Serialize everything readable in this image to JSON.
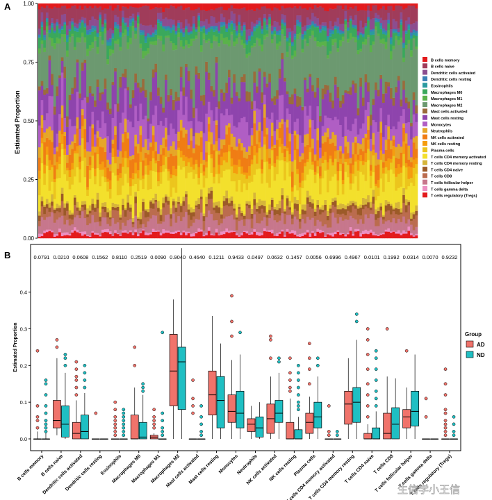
{
  "watermark": "生信学小王信",
  "colors": {
    "AD": "#f0736b",
    "ND": "#1fbfc3",
    "cell_types": [
      "#e31a1c",
      "#a03c5a",
      "#8c4d8f",
      "#3b7fb5",
      "#2a9aa0",
      "#3aa85c",
      "#5ab24a",
      "#6c9970",
      "#9b6b3c",
      "#8e44ad",
      "#b05ec4",
      "#e6a628",
      "#f07d14",
      "#f59d0f",
      "#ecc51d",
      "#f3e02c",
      "#d6b53a",
      "#9c5a28",
      "#bb6c4e",
      "#c7778c",
      "#ec8fc2"
    ]
  },
  "chart_data": [
    {
      "panel_label": "A",
      "type": "bar",
      "stacked": true,
      "n_samples": 150,
      "ylabel": "Estiamted Proportion",
      "ylim": [
        0,
        1
      ],
      "yticks": [
        0,
        0.25,
        0.5,
        0.75,
        1
      ],
      "ytick_labels": [
        "0.00",
        "0.25",
        "0.50",
        "0.75",
        "1.00"
      ],
      "legend_position": "right",
      "series_names": [
        "B cells memory",
        "B cells naive",
        "Dendritic cells activated",
        "Dendritic cells resting",
        "Eosinophils",
        "Macrophages M0",
        "Macrophages M1",
        "Macrophages M2",
        "Mast cells activated",
        "Mast cells resting",
        "Monocytes",
        "Neutrophils",
        "NK cells activated",
        "NK cells resting",
        "Plasma cells",
        "T cells CD4 memory activated",
        "T cells CD4 memory resting",
        "T cells CD4 naive",
        "T cells CD8",
        "T cells follicular helper",
        "T cells gamma delta",
        "T cells regulatory (Tregs)"
      ],
      "mean_proportions_bottom_to_top": {
        "T cells regulatory (Tregs)": 0.02,
        "T cells gamma delta": 0.01,
        "T cells follicular helper": 0.05,
        "T cells CD8": 0.04,
        "T cells CD4 naive": 0.02,
        "T cells CD4 memory resting": 0.02,
        "T cells CD4 memory activated": 0.1,
        "Plasma cells": 0.06,
        "NK cells resting": 0.03,
        "NK cells activated": 0.06,
        "Neutrophils": 0.04,
        "Monocytes": 0.09,
        "Mast cells resting": 0.12,
        "Mast cells activated": 0.03,
        "Macrophages M2": 0.19,
        "Macrophages M1": 0.02,
        "Macrophages M0": 0.04,
        "Eosinophils": 0.01,
        "Dendritic cells resting": 0.01,
        "Dendritic cells activated": 0.03,
        "B cells naive": 0.06,
        "B cells memory": 0.02
      }
    },
    {
      "panel_label": "B",
      "type": "box",
      "ylabel": "Estimated Proportion",
      "ylim": [
        0,
        0.53
      ],
      "yticks": [
        0,
        0.1,
        0.2,
        0.3,
        0.4
      ],
      "ytick_labels": [
        "0.0",
        "0.1",
        "0.2",
        "0.3",
        "0.4"
      ],
      "legend_title": "Group",
      "legend_position": "right",
      "groups": [
        "AD",
        "ND"
      ],
      "categories": [
        "B cells memory",
        "B cells naive",
        "Dendritic cells activated",
        "Dendritic cells resting",
        "Eosinophils",
        "Macrophages M0",
        "Macrophages M1",
        "Macrophages M2",
        "Mast cells activated",
        "Mast cells resting",
        "Monocytes",
        "Neutrophils",
        "NK cells activated",
        "NK cells resting",
        "Plasma cells",
        "T cells CD4 memory activated",
        "T cells CD4 memory resting",
        "T cells CD4 naive",
        "T cells CD8",
        "T cells follicular helper",
        "T cells gamma delta",
        "T cells regulatory (Tregs)"
      ],
      "pvalues": [
        "0.0791",
        "0.0210",
        "0.0608",
        "0.1562",
        "0.8110",
        "0.2519",
        "0.0090",
        "0.9040",
        "0.4640",
        "0.1211",
        "0.9433",
        "0.0497",
        "0.0632",
        "0.1457",
        "0.0056",
        "0.6996",
        "0.4967",
        "0.0101",
        "0.1992",
        "0.0314",
        "0.0070",
        "0.9232"
      ],
      "AD": [
        [
          0,
          0,
          0,
          0,
          0.02,
          [
            0.03,
            0.05,
            0.06,
            0.09,
            0.24
          ]
        ],
        [
          0.01,
          0.03,
          0.05,
          0.105,
          0.22,
          [
            0.25,
            0.27
          ]
        ],
        [
          0,
          0,
          0.015,
          0.045,
          0.105,
          [
            0.12,
            0.14,
            0.16,
            0.17,
            0.19,
            0.21
          ]
        ],
        [
          0,
          0,
          0,
          0,
          0,
          [
            0.07
          ]
        ],
        [
          0,
          0,
          0,
          0,
          0,
          [
            0.01,
            0.02,
            0.03,
            0.04,
            0.05,
            0.06,
            0.08,
            0.1
          ]
        ],
        [
          0,
          0,
          0,
          0.065,
          0.14,
          [
            0.2,
            0.25
          ]
        ],
        [
          0,
          0,
          0.005,
          0.01,
          0.015,
          [
            0.03,
            0.04,
            0.05,
            0.06,
            0.08
          ]
        ],
        [
          0,
          0.09,
          0.185,
          0.285,
          0.38,
          []
        ],
        [
          0,
          0,
          0,
          0,
          0,
          [
            0.07,
            0.09,
            0.11,
            0.16
          ]
        ],
        [
          0,
          0.065,
          0.12,
          0.185,
          0.335,
          []
        ],
        [
          0,
          0.045,
          0.075,
          0.12,
          0.215,
          [
            0.28,
            0.32,
            0.39
          ]
        ],
        [
          0,
          0.02,
          0.04,
          0.055,
          0.09,
          []
        ],
        [
          0,
          0.015,
          0.055,
          0.095,
          0.17,
          [
            0.22,
            0.27,
            0.28
          ]
        ],
        [
          0,
          0,
          0,
          0.045,
          0.11,
          [
            0.13,
            0.14,
            0.16,
            0.18,
            0.22
          ]
        ],
        [
          0,
          0.015,
          0.045,
          0.07,
          0.115,
          [
            0.15,
            0.19,
            0.22,
            0.26
          ]
        ],
        [
          0,
          0,
          0,
          0,
          0,
          [
            0.01,
            0.02,
            0.09
          ]
        ],
        [
          0,
          0.04,
          0.095,
          0.13,
          0.22,
          []
        ],
        [
          0,
          0,
          0,
          0.015,
          0.04,
          [
            0.06,
            0.09,
            0.12,
            0.15,
            0.19,
            0.23,
            0.27,
            0.3
          ]
        ],
        [
          0,
          0,
          0.015,
          0.07,
          0.17,
          [
            0.3
          ]
        ],
        [
          0,
          0.03,
          0.06,
          0.08,
          0.14,
          [
            0.24
          ]
        ],
        [
          0,
          0,
          0,
          0,
          0,
          [
            0.06,
            0.11
          ]
        ],
        [
          0,
          0,
          0,
          0,
          0,
          [
            0.01,
            0.02,
            0.03,
            0.04,
            0.05,
            0.07,
            0.08,
            0.12,
            0.15,
            0.19
          ]
        ]
      ],
      "ND": [
        [
          0,
          0,
          0,
          0,
          0.02,
          [
            0.02,
            0.03,
            0.04,
            0.05,
            0.07,
            0.09,
            0.12,
            0.15,
            0.16
          ]
        ],
        [
          0,
          0.005,
          0.04,
          0.09,
          0.18,
          [
            0.2,
            0.22,
            0.23
          ]
        ],
        [
          0,
          0,
          0.02,
          0.065,
          0.125,
          [
            0.14,
            0.16,
            0.18,
            0.2
          ]
        ],
        [
          0,
          0,
          0,
          0,
          0,
          []
        ],
        [
          0,
          0,
          0,
          0,
          0,
          [
            0.01,
            0.02,
            0.03,
            0.04,
            0.05,
            0.06,
            0.07,
            0.08
          ]
        ],
        [
          0,
          0,
          0.005,
          0.045,
          0.12,
          [
            0.13,
            0.14,
            0.15
          ]
        ],
        [
          0,
          0,
          0,
          0,
          0,
          [
            0.01,
            0.02,
            0.03,
            0.05,
            0.07,
            0.29
          ]
        ],
        [
          0,
          0.08,
          0.21,
          0.25,
          0.52,
          []
        ],
        [
          0,
          0,
          0,
          0,
          0,
          [
            0.01,
            0.02,
            0.04,
            0.06,
            0.09
          ]
        ],
        [
          0,
          0.03,
          0.105,
          0.17,
          0.26,
          []
        ],
        [
          0,
          0.03,
          0.07,
          0.13,
          0.23,
          [
            0.29
          ]
        ],
        [
          0,
          0.005,
          0.03,
          0.06,
          0.1,
          []
        ],
        [
          0,
          0.045,
          0.07,
          0.105,
          0.18,
          [
            0.21,
            0.22
          ]
        ],
        [
          0,
          0,
          0,
          0.025,
          0.06,
          [
            0.08,
            0.09,
            0.1,
            0.12,
            0.14,
            0.16,
            0.18,
            0.2
          ]
        ],
        [
          0,
          0.03,
          0.06,
          0.1,
          0.17,
          [
            0.2,
            0.22
          ]
        ],
        [
          0,
          0,
          0,
          0,
          0,
          [
            0.01,
            0.02
          ]
        ],
        [
          0,
          0.045,
          0.1,
          0.14,
          0.27,
          [
            0.32,
            0.34
          ]
        ],
        [
          0,
          0,
          0,
          0.03,
          0.075,
          [
            0.09,
            0.11,
            0.13,
            0.16,
            0.19,
            0.22,
            0.24
          ]
        ],
        [
          0,
          0,
          0.04,
          0.085,
          0.165,
          []
        ],
        [
          0,
          0.035,
          0.075,
          0.13,
          0.23,
          []
        ],
        [
          0,
          0,
          0,
          0,
          0,
          []
        ],
        [
          0,
          0,
          0,
          0,
          0,
          [
            0.01,
            0.02,
            0.04,
            0.06
          ]
        ]
      ]
    }
  ]
}
